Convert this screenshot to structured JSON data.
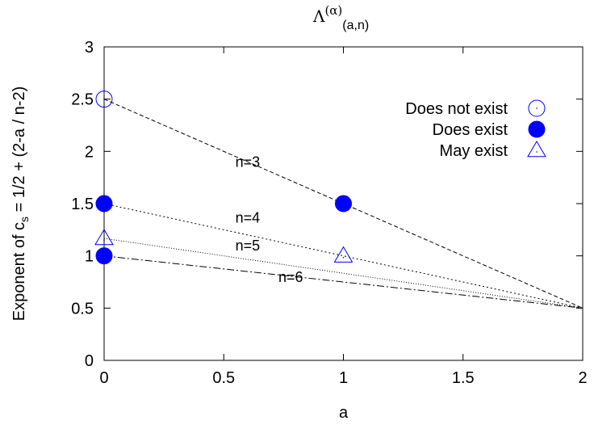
{
  "chart_data": {
    "type": "scatter",
    "title": "Λ(α)(a,n)",
    "xlabel": "a",
    "ylabel": "Exponent of cs = 1/2 + (2-a / n-2)",
    "xlim": [
      0,
      2
    ],
    "ylim": [
      0,
      3
    ],
    "x_ticks": [
      "0",
      "0.5",
      "1",
      "1.5",
      "2"
    ],
    "y_ticks": [
      "0",
      "0.5",
      "1",
      "1.5",
      "2",
      "2.5",
      "3"
    ],
    "grid": false,
    "legend_position": "top-right",
    "lines": [
      {
        "label": "n=3",
        "x": [
          0,
          2
        ],
        "y": [
          2.5,
          0.5
        ],
        "dash": "dashed",
        "label_at": [
          0.6,
          1.85
        ]
      },
      {
        "label": "n=4",
        "x": [
          0,
          2
        ],
        "y": [
          1.5,
          0.5
        ],
        "dash": "dotted",
        "label_at": [
          0.6,
          1.32
        ]
      },
      {
        "label": "n=5",
        "x": [
          0,
          2
        ],
        "y": [
          1.1667,
          0.5
        ],
        "dash": "dotted-fine",
        "label_at": [
          0.6,
          1.05
        ]
      },
      {
        "label": "n=6",
        "x": [
          0,
          2
        ],
        "y": [
          1.0,
          0.5
        ],
        "dash": "dash-dot",
        "label_at": [
          0.78,
          0.75
        ]
      }
    ],
    "series": [
      {
        "name": "Does not exist",
        "marker": "open-circle",
        "x": [
          0
        ],
        "y": [
          2.5
        ]
      },
      {
        "name": "Does exist",
        "marker": "filled-circle",
        "x": [
          0,
          0,
          1
        ],
        "y": [
          1.5,
          1.0,
          1.5
        ]
      },
      {
        "name": "May exist",
        "marker": "open-triangle",
        "x": [
          0,
          1
        ],
        "y": [
          1.1667,
          1.0
        ]
      }
    ],
    "colors": {
      "marker": "#0000ff",
      "line": "#000000",
      "axis": "#000000"
    }
  }
}
